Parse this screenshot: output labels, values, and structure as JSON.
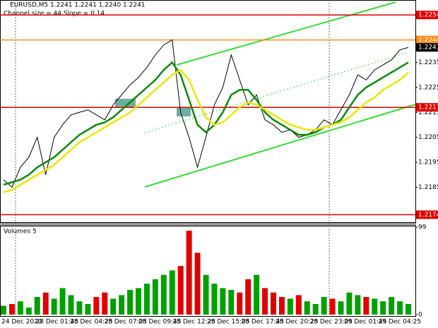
{
  "chart_data": [
    {
      "type": "line",
      "title": "EURUSD,M5  1.2241 1.2241 1.2240 1.2241",
      "subtitle": "Channel size = 44 Slope = 0.14",
      "ylim": [
        1.2171,
        1.226
      ],
      "yticks": [
        1.2185,
        1.2195,
        1.2205,
        1.2215,
        1.2225,
        1.2235
      ],
      "levels": [
        {
          "value": 1.2254,
          "color": "#e00000"
        },
        {
          "value": 1.2244,
          "color": "#ff8c1a"
        },
        {
          "value": 1.2217,
          "color": "#e00000"
        },
        {
          "value": 1.2174,
          "color": "#e00000"
        }
      ],
      "last_price": 1.2241,
      "series": [
        {
          "color": "#000000",
          "values": [
            1.2188,
            1.2185,
            1.2193,
            1.2197,
            1.2205,
            1.219,
            1.2205,
            1.221,
            1.2214,
            1.2215,
            1.2216,
            1.2214,
            1.2212,
            1.2218,
            1.2222,
            1.2226,
            1.2229,
            1.2233,
            1.2238,
            1.2242,
            1.2244,
            1.2215,
            1.2205,
            1.2193,
            1.2205,
            1.2218,
            1.2225,
            1.2238,
            1.2228,
            1.2218,
            1.2222,
            1.2212,
            1.221,
            1.2207,
            1.2208,
            1.2205,
            1.2206,
            1.2208,
            1.2212,
            1.221,
            1.2216,
            1.2222,
            1.223,
            1.2228,
            1.2232,
            1.2234,
            1.2236,
            1.224,
            1.2241
          ]
        },
        {
          "color": "#0a8a0a",
          "values": [
            1.2186,
            1.2187,
            1.2188,
            1.219,
            1.2193,
            1.2195,
            1.2197,
            1.22,
            1.2203,
            1.2206,
            1.2208,
            1.221,
            1.2211,
            1.2213,
            1.2216,
            1.2219,
            1.2222,
            1.2225,
            1.2228,
            1.2232,
            1.2235,
            1.223,
            1.222,
            1.221,
            1.2207,
            1.221,
            1.2215,
            1.2222,
            1.2224,
            1.2224,
            1.222,
            1.2215,
            1.2212,
            1.221,
            1.2208,
            1.2206,
            1.2206,
            1.2207,
            1.2209,
            1.221,
            1.2212,
            1.2217,
            1.2222,
            1.2225,
            1.2227,
            1.2229,
            1.2231,
            1.2233,
            1.2235
          ]
        },
        {
          "color": "#e8e800",
          "values": [
            1.2183,
            1.2184,
            1.2186,
            1.2188,
            1.219,
            1.2192,
            1.2194,
            1.2197,
            1.22,
            1.2203,
            1.2205,
            1.2207,
            1.2209,
            1.2211,
            1.2213,
            1.2215,
            1.2218,
            1.2221,
            1.2224,
            1.2227,
            1.223,
            1.2232,
            1.2228,
            1.222,
            1.2213,
            1.221,
            1.2211,
            1.2214,
            1.2217,
            1.2219,
            1.2218,
            1.2216,
            1.2214,
            1.2212,
            1.221,
            1.2209,
            1.2208,
            1.2208,
            1.2209,
            1.221,
            1.2211,
            1.2213,
            1.2216,
            1.2219,
            1.2221,
            1.2224,
            1.2226,
            1.2228,
            1.2231
          ]
        }
      ]
    },
    {
      "type": "bar",
      "title": "Volumes 5",
      "ylim": [
        0,
        99
      ],
      "yticks": [
        0,
        99
      ],
      "up_color": "#00a000",
      "down_color": "#e00000",
      "values": [
        10,
        12,
        15,
        8,
        20,
        25,
        18,
        30,
        22,
        15,
        12,
        20,
        25,
        18,
        22,
        28,
        30,
        35,
        40,
        45,
        50,
        55,
        95,
        70,
        45,
        35,
        30,
        28,
        25,
        40,
        45,
        30,
        25,
        20,
        18,
        22,
        15,
        12,
        20,
        18,
        15,
        25,
        22,
        20,
        18,
        15,
        20,
        15,
        12
      ],
      "time_labels": [
        "24 Dec 2020",
        "28 Dec 01:45",
        "28 Dec 04:25",
        "28 Dec 07:05",
        "28 Dec 09:45",
        "28 Dec 12:25",
        "28 Dec 15:05",
        "28 Dec 17:45",
        "28 Dec 20:25",
        "28 Dec 23:05",
        "29 Dec 01:45",
        "29 Dec 04:25"
      ]
    }
  ]
}
